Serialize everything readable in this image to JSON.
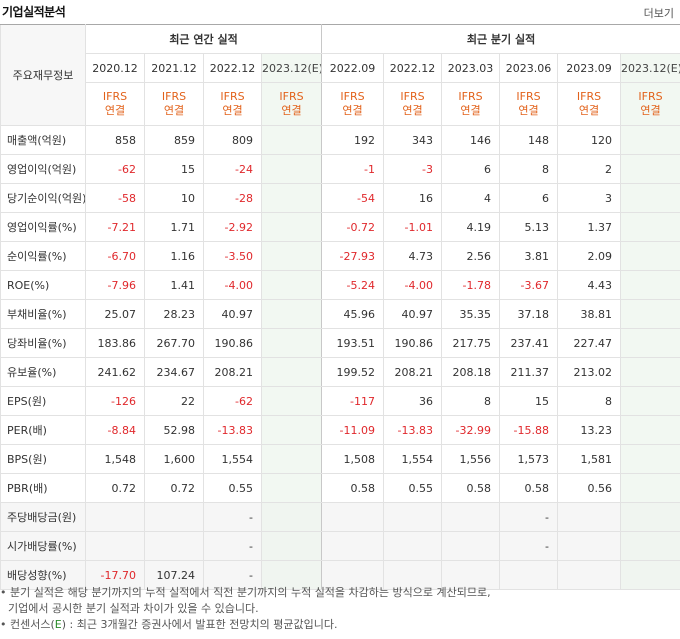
{
  "header": {
    "title": "기업실적분석",
    "more": "더보기"
  },
  "table": {
    "row_header_label": "주요재무정보",
    "annual_group": "최근 연간 실적",
    "quarter_group": "최근 분기 실적",
    "annual_periods": [
      "2020.12",
      "2021.12",
      "2022.12",
      "2023.12(E)"
    ],
    "quarter_periods": [
      "2022.09",
      "2022.12",
      "2023.03",
      "2023.06",
      "2023.09",
      "2023.12(E)"
    ],
    "ifrs_line1": "IFRS",
    "ifrs_line2": "연결",
    "rows": [
      {
        "label": "매출액(억원)",
        "values": [
          "858",
          "859",
          "809",
          "",
          "192",
          "343",
          "146",
          "148",
          "120",
          ""
        ]
      },
      {
        "label": "영업이익(억원)",
        "values": [
          "-62",
          "15",
          "-24",
          "",
          "-1",
          "-3",
          "6",
          "8",
          "2",
          ""
        ]
      },
      {
        "label": "당기순이익(억원)",
        "values": [
          "-58",
          "10",
          "-28",
          "",
          "-54",
          "16",
          "4",
          "6",
          "3",
          ""
        ]
      },
      {
        "label": "영업이익률(%)",
        "values": [
          "-7.21",
          "1.71",
          "-2.92",
          "",
          "-0.72",
          "-1.01",
          "4.19",
          "5.13",
          "1.37",
          ""
        ]
      },
      {
        "label": "순이익률(%)",
        "values": [
          "-6.70",
          "1.16",
          "-3.50",
          "",
          "-27.93",
          "4.73",
          "2.56",
          "3.81",
          "2.09",
          ""
        ]
      },
      {
        "label": "ROE(%)",
        "values": [
          "-7.96",
          "1.41",
          "-4.00",
          "",
          "-5.24",
          "-4.00",
          "-1.78",
          "-3.67",
          "4.43",
          ""
        ]
      },
      {
        "label": "부채비율(%)",
        "values": [
          "25.07",
          "28.23",
          "40.97",
          "",
          "45.96",
          "40.97",
          "35.35",
          "37.18",
          "38.81",
          ""
        ]
      },
      {
        "label": "당좌비율(%)",
        "values": [
          "183.86",
          "267.70",
          "190.86",
          "",
          "193.51",
          "190.86",
          "217.75",
          "237.41",
          "227.47",
          ""
        ]
      },
      {
        "label": "유보율(%)",
        "values": [
          "241.62",
          "234.67",
          "208.21",
          "",
          "199.52",
          "208.21",
          "208.18",
          "211.37",
          "213.02",
          ""
        ]
      },
      {
        "label": "EPS(원)",
        "values": [
          "-126",
          "22",
          "-62",
          "",
          "-117",
          "36",
          "8",
          "15",
          "8",
          ""
        ]
      },
      {
        "label": "PER(배)",
        "values": [
          "-8.84",
          "52.98",
          "-13.83",
          "",
          "-11.09",
          "-13.83",
          "-32.99",
          "-15.88",
          "13.23",
          ""
        ]
      },
      {
        "label": "BPS(원)",
        "values": [
          "1,548",
          "1,600",
          "1,554",
          "",
          "1,508",
          "1,554",
          "1,556",
          "1,573",
          "1,581",
          ""
        ]
      },
      {
        "label": "PBR(배)",
        "values": [
          "0.72",
          "0.72",
          "0.55",
          "",
          "0.58",
          "0.55",
          "0.58",
          "0.58",
          "0.56",
          ""
        ]
      },
      {
        "label": "주당배당금(원)",
        "values": [
          "",
          "",
          "-",
          "",
          "",
          "",
          "",
          "-",
          "",
          ""
        ]
      },
      {
        "label": "시가배당률(%)",
        "values": [
          "",
          "",
          "-",
          "",
          "",
          "",
          "",
          "-",
          "",
          ""
        ]
      },
      {
        "label": "배당성향(%)",
        "values": [
          "-17.70",
          "107.24",
          "-",
          "",
          "",
          "",
          "",
          "",
          "",
          ""
        ]
      }
    ]
  },
  "notes": {
    "line1": "• 분기 실적은 해당 분기까지의 누적 실적에서 직전 분기까지의 누적 실적을 차감하는 방식으로 계산되므로,",
    "line2": "기업에서 공시한 분기 실적과 차이가 있을 수 있습니다.",
    "line3_pre": "• 컨센서스(",
    "line3_mark": "E",
    "line3_post": ") : 최근 3개월간 증권사에서 발표한 전망치의 평균값입니다."
  },
  "colors": {
    "negative": "#e0282c",
    "ifrs": "#e2621b",
    "estimate_bg": "#f2f8f2"
  }
}
